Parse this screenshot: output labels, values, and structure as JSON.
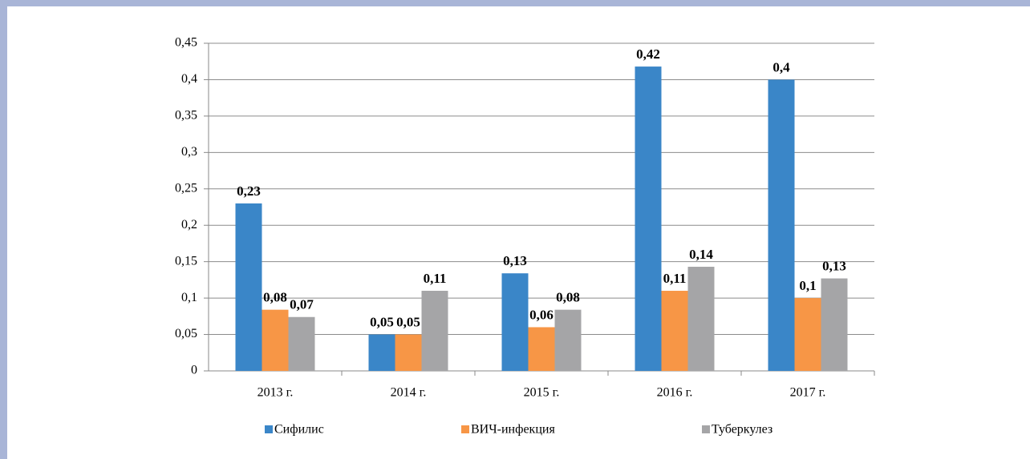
{
  "chart_data": {
    "type": "bar",
    "categories": [
      "2013 г.",
      "2014 г.",
      "2015 г.",
      "2016 г.",
      "2017 г."
    ],
    "series": [
      {
        "name": "Сифилис",
        "color": "#3a86c8",
        "values": [
          0.23,
          0.05,
          0.134,
          0.418,
          0.4
        ],
        "value_labels": [
          "0,23",
          "0,05",
          "0,13",
          "0,42",
          "0,4"
        ]
      },
      {
        "name": "ВИЧ-инфекция",
        "color": "#f79646",
        "values": [
          0.084,
          0.05,
          0.06,
          0.11,
          0.1
        ],
        "value_labels": [
          "0,08",
          "0,05",
          "0,06",
          "0,11",
          "0,1"
        ]
      },
      {
        "name": "Туберкулез",
        "color": "#a5a5a7",
        "values": [
          0.074,
          0.11,
          0.084,
          0.143,
          0.127
        ],
        "value_labels": [
          "0,07",
          "0,11",
          "0,08",
          "0,14",
          "0,13"
        ]
      }
    ],
    "ylim": [
      0,
      0.45
    ],
    "yticks": [
      0,
      {
        "value": 0.05,
        "label": "0,05"
      },
      {
        "value": 0.1,
        "label": "0,1"
      },
      {
        "value": 0.15,
        "label": "0,15"
      },
      {
        "value": 0.2,
        "label": "0,2"
      },
      {
        "value": 0.25,
        "label": "0,25"
      },
      {
        "value": 0.3,
        "label": "0,3"
      },
      {
        "value": 0.35,
        "label": "0,35"
      },
      {
        "value": 0.4,
        "label": "0,4"
      },
      {
        "value": 0.45,
        "label": "0,45"
      }
    ],
    "grid": true,
    "legend": "bottom"
  }
}
